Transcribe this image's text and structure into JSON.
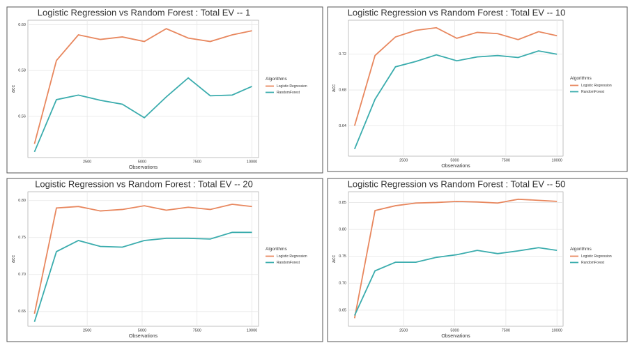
{
  "chart_data": [
    {
      "type": "line",
      "title": "Logistic Regression vs Random Forest : Total EV -- 1",
      "xlabel": "Observations",
      "ylabel": "acc",
      "legend_title": "Algorithms",
      "legend": "right",
      "grid": true,
      "x": [
        100,
        1100,
        2100,
        3100,
        4100,
        5100,
        6100,
        7100,
        8100,
        9100,
        10000
      ],
      "series": [
        {
          "name": "Logistic Regression",
          "color": "#e8875e",
          "values": [
            0.548,
            0.5844,
            0.5956,
            0.5936,
            0.5947,
            0.5927,
            0.5983,
            0.5942,
            0.5927,
            0.5956,
            0.5974
          ]
        },
        {
          "name": "RandomForest",
          "color": "#3aacad",
          "values": [
            0.5445,
            0.5673,
            0.5693,
            0.567,
            0.5653,
            0.5594,
            0.5685,
            0.5768,
            0.569,
            0.5693,
            0.5731
          ]
        }
      ],
      "xlim": [
        -200,
        10300
      ],
      "ylim": [
        0.542,
        0.602
      ],
      "xticks": [
        2500,
        5000,
        7500,
        10000
      ],
      "yticks": [
        0.56,
        0.58,
        {
          "value": 0.6,
          "label": "0.60"
        }
      ]
    },
    {
      "type": "line",
      "title": "Logistic Regression vs Random Forest : Total EV -- 10",
      "xlabel": "Observations",
      "ylabel": "acc",
      "legend_title": "Algorithms",
      "legend": "right",
      "grid": true,
      "x": [
        100,
        1100,
        2100,
        3100,
        4100,
        5100,
        6100,
        7100,
        8100,
        9100,
        10000
      ],
      "series": [
        {
          "name": "Logistic Regression",
          "color": "#e8875e",
          "values": [
            0.64,
            0.7185,
            0.7393,
            0.7467,
            0.7496,
            0.7378,
            0.7444,
            0.743,
            0.7363,
            0.7452,
            0.7407
          ]
        },
        {
          "name": "RandomForest",
          "color": "#3aacad",
          "values": [
            0.614,
            0.6696,
            0.7059,
            0.7119,
            0.7193,
            0.7126,
            0.717,
            0.7185,
            0.7163,
            0.7237,
            0.72
          ]
        }
      ],
      "xlim": [
        -200,
        10300
      ],
      "ylim": [
        0.606,
        0.758
      ],
      "xticks": [
        2500,
        5000,
        7500,
        10000
      ],
      "yticks": [
        0.64,
        0.68,
        0.72
      ]
    },
    {
      "type": "line",
      "title": "Logistic Regression vs Random Forest : Total EV -- 20",
      "xlabel": "Observations",
      "ylabel": "acc",
      "legend_title": "Algorithms",
      "legend": "right",
      "grid": true,
      "x": [
        100,
        1100,
        2100,
        3100,
        4100,
        5100,
        6100,
        7100,
        8100,
        9100,
        10000
      ],
      "series": [
        {
          "name": "Logistic Regression",
          "color": "#e8875e",
          "values": [
            0.647,
            0.79,
            0.792,
            0.786,
            0.788,
            0.793,
            0.787,
            0.791,
            0.788,
            0.795,
            0.792
          ]
        },
        {
          "name": "RandomForest",
          "color": "#3aacad",
          "values": [
            0.636,
            0.731,
            0.746,
            0.738,
            0.737,
            0.746,
            0.749,
            0.749,
            0.748,
            0.757,
            0.757
          ]
        }
      ],
      "xlim": [
        -200,
        10300
      ],
      "ylim": [
        0.63,
        0.812
      ],
      "xticks": [
        2500,
        5000,
        7500,
        10000
      ],
      "yticks": [
        0.65,
        {
          "value": 0.7,
          "label": "0.70"
        },
        0.75,
        {
          "value": 0.8,
          "label": "0.80"
        }
      ]
    },
    {
      "type": "line",
      "title": "Logistic Regression vs Random Forest : Total EV -- 50",
      "xlabel": "Observations",
      "ylabel": "acc",
      "legend_title": "Algorithms",
      "legend": "right",
      "grid": true,
      "x": [
        100,
        1100,
        2100,
        3100,
        4100,
        5100,
        6100,
        7100,
        8100,
        9100,
        10000
      ],
      "series": [
        {
          "name": "Logistic Regression",
          "color": "#e8875e",
          "values": [
            0.635,
            0.835,
            0.844,
            0.849,
            0.85,
            0.852,
            0.851,
            0.849,
            0.856,
            0.854,
            0.852
          ]
        },
        {
          "name": "RandomForest",
          "color": "#3aacad",
          "values": [
            0.64,
            0.723,
            0.739,
            0.739,
            0.748,
            0.753,
            0.761,
            0.755,
            0.76,
            0.766,
            0.761
          ]
        }
      ],
      "xlim": [
        -200,
        10300
      ],
      "ylim": [
        0.62,
        0.87
      ],
      "xticks": [
        2500,
        5000,
        7500,
        10000
      ],
      "yticks": [
        0.65,
        {
          "value": 0.7,
          "label": "0.70"
        },
        0.75,
        {
          "value": 0.8,
          "label": "0.80"
        },
        0.85
      ]
    }
  ]
}
